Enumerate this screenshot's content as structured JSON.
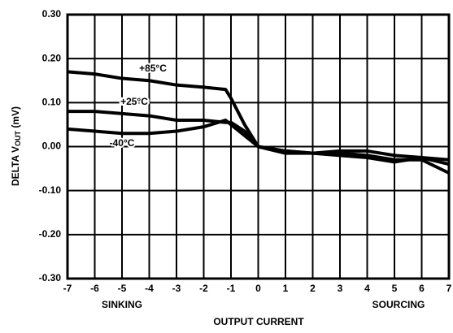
{
  "chart_data": {
    "type": "line",
    "ylabel": [
      "DELTA V",
      "OUT",
      " (mV)"
    ],
    "xlabel": "OUTPUT CURRENT",
    "annotations": [
      "SINKING",
      "SOURCING"
    ],
    "x": [
      -7,
      -6,
      -5,
      -4,
      -3,
      -2,
      -1.2,
      -1,
      -0.5,
      0,
      1,
      2,
      3,
      4,
      5,
      6,
      7
    ],
    "series": [
      {
        "name": "+85°C",
        "color": "#000000",
        "values": [
          0.17,
          0.165,
          0.155,
          0.15,
          0.14,
          0.135,
          0.13,
          0.11,
          0.05,
          0.0,
          -0.01,
          -0.015,
          -0.015,
          -0.02,
          -0.03,
          -0.03,
          -0.06
        ]
      },
      {
        "name": "+25°C",
        "color": "#000000",
        "values": [
          0.08,
          0.08,
          0.075,
          0.07,
          0.06,
          0.06,
          0.055,
          0.055,
          0.035,
          0.0,
          -0.01,
          -0.015,
          -0.01,
          -0.01,
          -0.02,
          -0.025,
          -0.03
        ]
      },
      {
        "name": "-40°C",
        "color": "#000000",
        "values": [
          0.04,
          0.035,
          0.03,
          0.03,
          0.035,
          0.045,
          0.06,
          0.05,
          0.025,
          0.0,
          -0.015,
          -0.015,
          -0.02,
          -0.025,
          -0.035,
          -0.025,
          -0.04
        ]
      }
    ],
    "xlim": [
      -7,
      7
    ],
    "ylim": [
      -0.3,
      0.3
    ],
    "xticks": [
      -7,
      -6,
      -5,
      -4,
      -3,
      -2,
      -1,
      0,
      1,
      2,
      3,
      4,
      5,
      6,
      7
    ],
    "yticks": [
      {
        "value": 0.3,
        "label": "0.30"
      },
      {
        "value": 0.2,
        "label": "0.20"
      },
      {
        "value": 0.1,
        "label": "0.10"
      },
      {
        "value": 0,
        "label": "0.00"
      },
      {
        "value": -0.1,
        "label": "-0.10"
      },
      {
        "value": -0.2,
        "label": "-0.20"
      },
      {
        "value": -0.3,
        "label": "-0.30"
      }
    ],
    "grid": true
  }
}
